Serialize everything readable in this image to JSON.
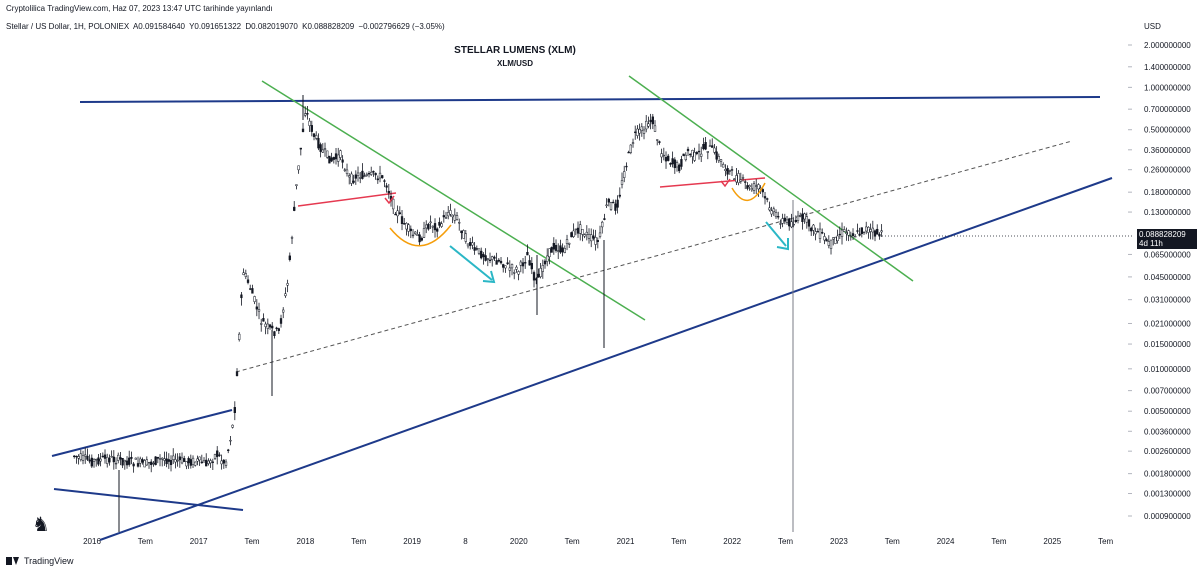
{
  "header": {
    "published": "Cryptolilica TradingView.com, Haz 07, 2023 13:47 UTC tarihinde yayınlandı",
    "symbol": "Stellar / US Dollar, 1H, POLONIEX",
    "ohlc": {
      "open": "A0.091584640",
      "high": "Y0.091651322",
      "low": "D0.082019070",
      "close": "K0.088828209",
      "change": "−0.002796629 (−3.05%)"
    }
  },
  "chart_data": {
    "type": "line",
    "title": "STELLAR LUMENS (XLM)",
    "subtitle": "XLM/USD",
    "currency": "USD",
    "scale": "log",
    "x_tick_labels": [
      "2016",
      "Tem",
      "2017",
      "Tem",
      "2018",
      "Tem",
      "2019",
      "8",
      "2020",
      "Tem",
      "2021",
      "Tem",
      "2022",
      "Tem",
      "2023",
      "Tem",
      "2024",
      "Tem",
      "2025",
      "Tem"
    ],
    "y_tick_labels": [
      "2.000000000",
      "1.400000000",
      "1.000000000",
      "0.700000000",
      "0.500000000",
      "0.360000000",
      "0.260000000",
      "0.180000000",
      "0.130000000",
      "0.088828209",
      "0.065000000",
      "0.045000000",
      "0.031000000",
      "0.021000000",
      "0.015000000",
      "0.010000000",
      "0.007000000",
      "0.005000000",
      "0.003600000",
      "0.002600000",
      "0.001800000",
      "0.001300000",
      "0.000900000"
    ],
    "series": [
      {
        "x": [
          "2015-11",
          "2016-01",
          "2016-03",
          "2016-05",
          "2016-07",
          "2016-09",
          "2016-11",
          "2017-01",
          "2017-02",
          "2017-03",
          "2017-04",
          "2017-05",
          "2017-06",
          "2017-07",
          "2017-08",
          "2017-09",
          "2017-10",
          "2017-11",
          "2017-12",
          "2018-01",
          "2018-02",
          "2018-03",
          "2018-04",
          "2018-05",
          "2018-06",
          "2018-07",
          "2018-08",
          "2018-09",
          "2018-10",
          "2018-11",
          "2018-12",
          "2019-01",
          "2019-02",
          "2019-03",
          "2019-04",
          "2019-05",
          "2019-06",
          "2019-07",
          "2019-08",
          "2019-09",
          "2019-10",
          "2019-11",
          "2019-12",
          "2020-01",
          "2020-02",
          "2020-03",
          "2020-04",
          "2020-05",
          "2020-06",
          "2020-07",
          "2020-08",
          "2020-09",
          "2020-10",
          "2020-11",
          "2020-12",
          "2021-01",
          "2021-02",
          "2021-03",
          "2021-04",
          "2021-05",
          "2021-06",
          "2021-07",
          "2021-08",
          "2021-09",
          "2021-10",
          "2021-11",
          "2021-12",
          "2022-01",
          "2022-02",
          "2022-03",
          "2022-04",
          "2022-05",
          "2022-06",
          "2022-07",
          "2022-08",
          "2022-09",
          "2022-10",
          "2022-11",
          "2022-12",
          "2023-01",
          "2023-02",
          "2023-03",
          "2023-04",
          "2023-05",
          "2023-06"
        ],
        "y": [
          0.0024,
          0.0022,
          0.0023,
          0.0022,
          0.0021,
          0.0023,
          0.0022,
          0.0022,
          0.0021,
          0.0025,
          0.0021,
          0.0045,
          0.05,
          0.035,
          0.022,
          0.019,
          0.018,
          0.04,
          0.2,
          0.7,
          0.45,
          0.35,
          0.3,
          0.33,
          0.22,
          0.24,
          0.23,
          0.24,
          0.22,
          0.14,
          0.11,
          0.09,
          0.085,
          0.11,
          0.1,
          0.13,
          0.12,
          0.085,
          0.07,
          0.065,
          0.06,
          0.058,
          0.052,
          0.05,
          0.065,
          0.04,
          0.06,
          0.075,
          0.068,
          0.09,
          0.1,
          0.085,
          0.08,
          0.15,
          0.14,
          0.27,
          0.45,
          0.5,
          0.6,
          0.35,
          0.3,
          0.27,
          0.35,
          0.32,
          0.38,
          0.35,
          0.28,
          0.24,
          0.22,
          0.19,
          0.2,
          0.15,
          0.12,
          0.11,
          0.11,
          0.12,
          0.1,
          0.09,
          0.075,
          0.09,
          0.095,
          0.09,
          0.1,
          0.092,
          0.0888
        ]
      }
    ],
    "last_price": "0.088828209",
    "countdown": "4d 11h",
    "colors": {
      "candles": "#131722",
      "support_trendline": "#1e3a8a",
      "resistance_lines": "#4caf50",
      "horizontal_levels": "#e53950",
      "arc_pattern": "#f59e0b",
      "arrows": "#2bb7c6",
      "dashed_midline": "#555555"
    }
  },
  "footer": {
    "brand": "TradingView"
  }
}
